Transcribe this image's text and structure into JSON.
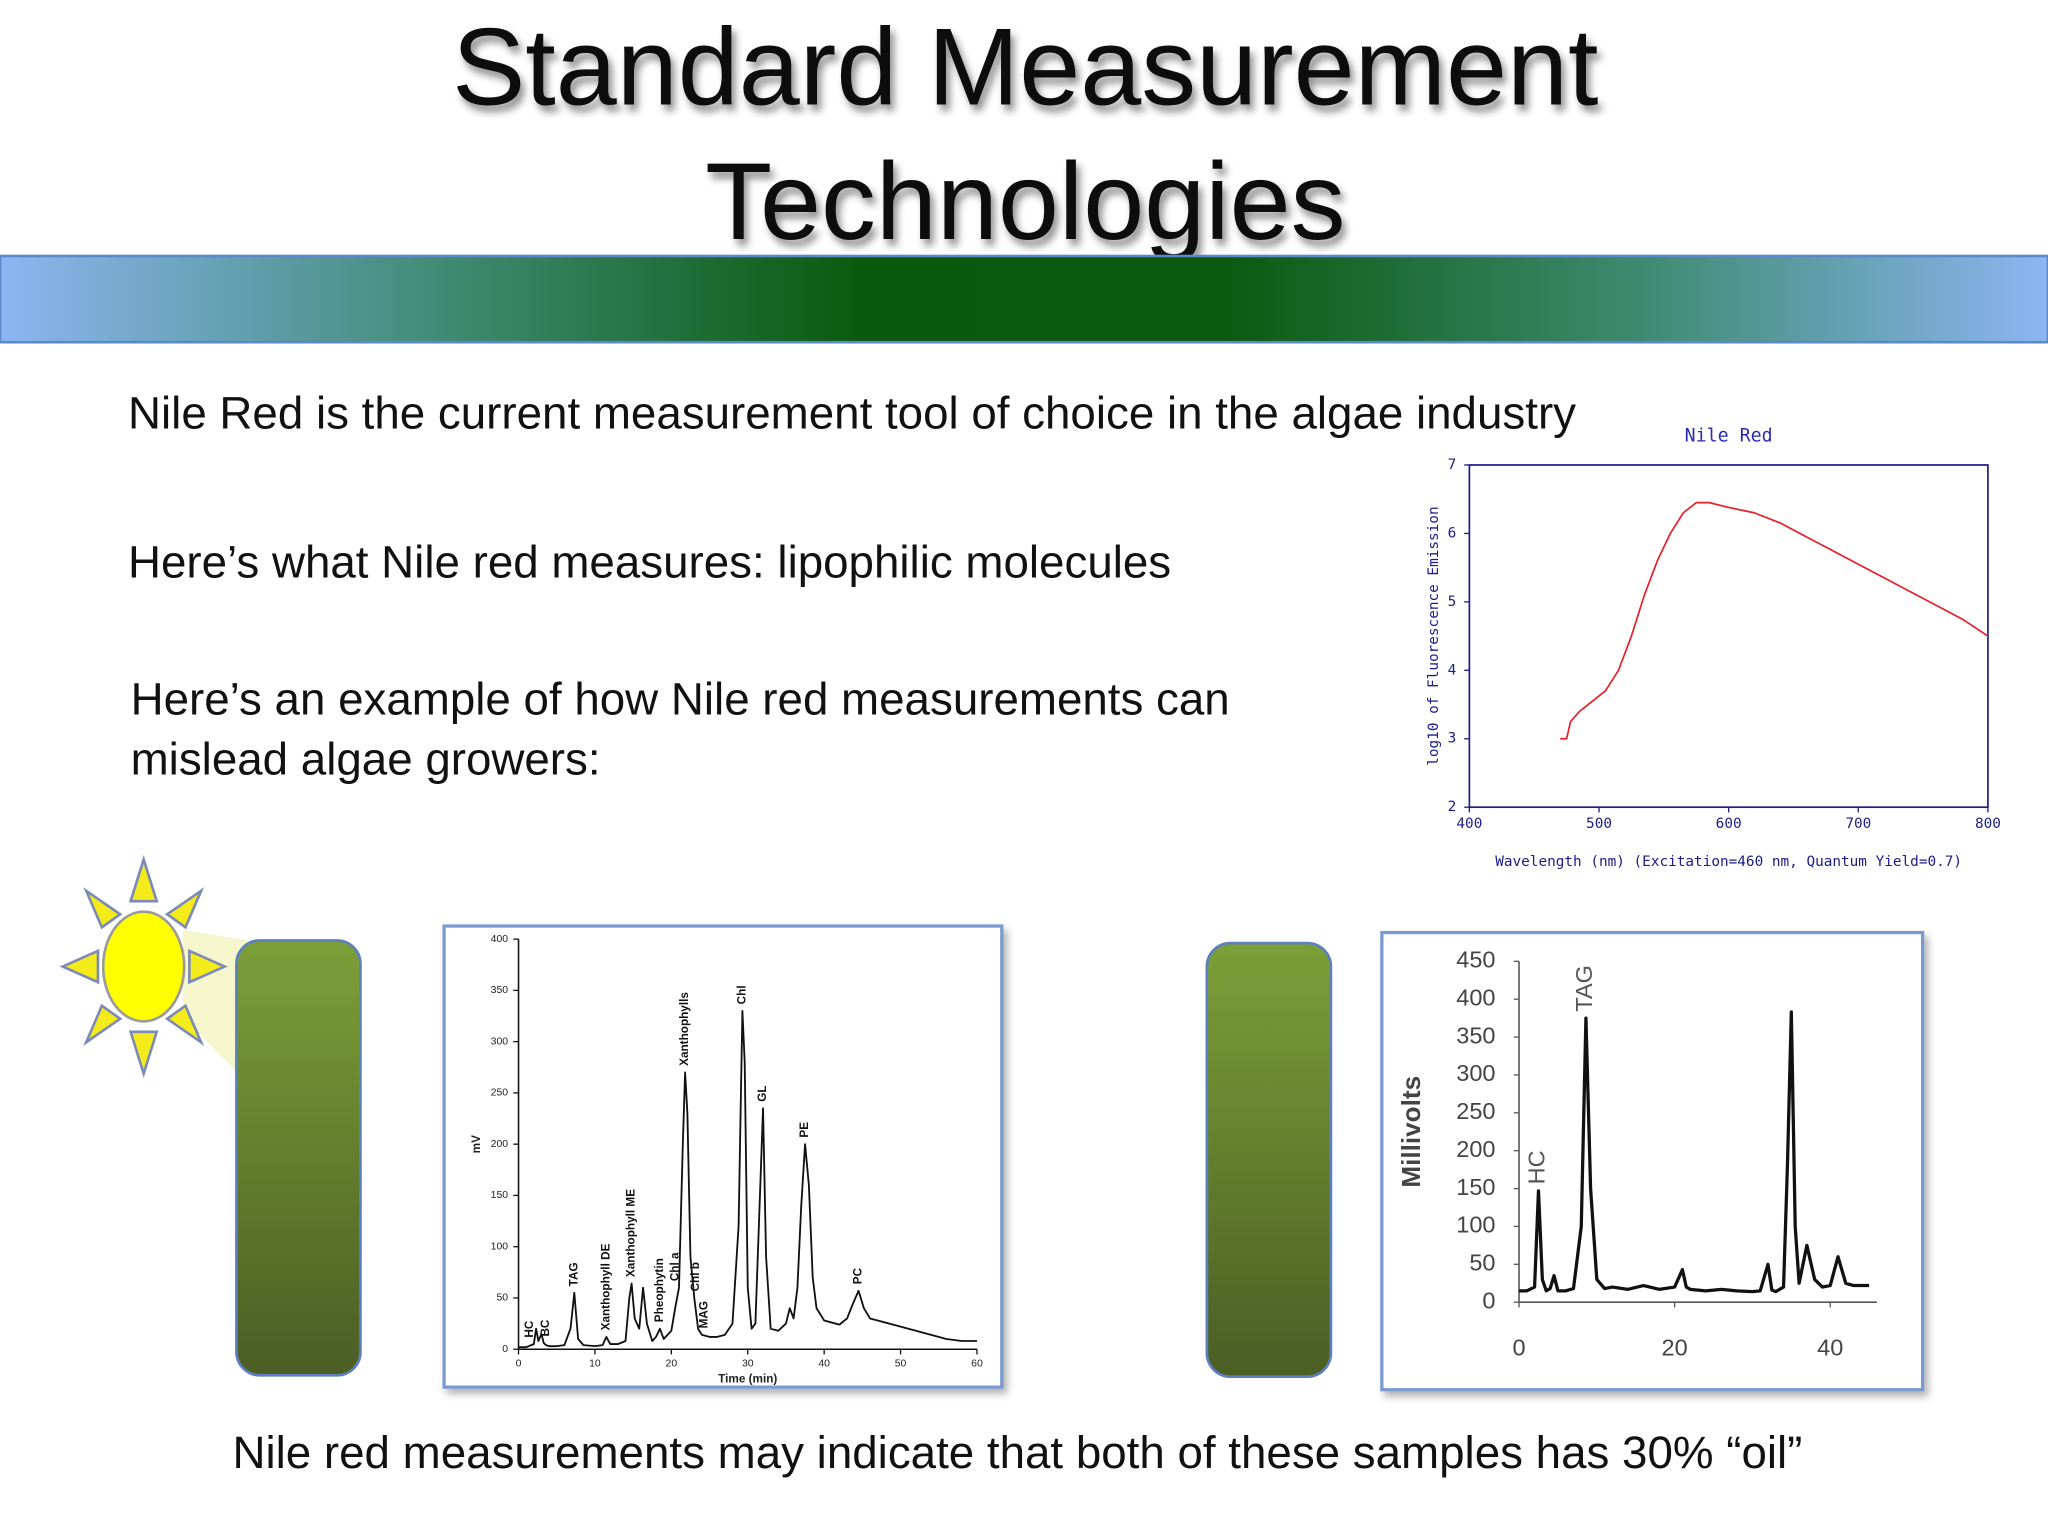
{
  "slide": {
    "title": [
      "Standard Measurement",
      "Technologies"
    ],
    "bullets": [
      [
        "Nile Red is the current measurement tool of choice in the algae industry"
      ],
      [
        "Here’s what Nile red measures: lipophilic molecules"
      ],
      [
        "Here’s an example of how Nile red measurements can",
        "mislead algae growers:"
      ]
    ],
    "footer": "Nile red measurements may indicate that both of these samples has 30% “oil”"
  },
  "chart_data": [
    {
      "type": "line",
      "title": "Nile Red",
      "x_label": "Wavelength (nm) (Excitation=460 nm, Quantum Yield=0.7)",
      "y_label": "log10 of Fluorescence Emission",
      "color": "#e8202a",
      "x": [
        470,
        475,
        478,
        485,
        495,
        505,
        515,
        525,
        535,
        545,
        555,
        565,
        575,
        585,
        600,
        620,
        640,
        660,
        680,
        700,
        720,
        740,
        760,
        780,
        800
      ],
      "values": [
        3.0,
        3.0,
        3.25,
        3.4,
        3.55,
        3.7,
        4.0,
        4.5,
        5.1,
        5.6,
        6.0,
        6.3,
        6.45,
        6.45,
        6.38,
        6.3,
        6.15,
        5.95,
        5.75,
        5.55,
        5.35,
        5.15,
        4.95,
        4.75,
        4.5
      ],
      "xlim": [
        400,
        800
      ],
      "xticks": [
        400,
        500,
        600,
        700,
        800
      ],
      "ylim": [
        2,
        7
      ],
      "yticks": [
        2,
        3,
        4,
        5,
        6,
        7
      ]
    },
    {
      "type": "line",
      "x_label": "Time (min)",
      "y_label": "mV",
      "color": "#111111",
      "x": [
        0,
        1,
        2,
        2.3,
        2.6,
        3,
        3.3,
        3.6,
        4,
        5,
        6,
        6.8,
        7.3,
        7.8,
        8.5,
        10,
        11,
        11.5,
        12,
        13,
        14,
        14.5,
        14.8,
        15.2,
        15.8,
        16.3,
        16.8,
        17.5,
        18,
        18.5,
        19,
        20,
        20.5,
        21,
        21.5,
        21.8,
        22.1,
        22.5,
        23,
        23.5,
        24,
        25,
        26,
        27,
        28,
        28.8,
        29.3,
        29.6,
        30,
        30.5,
        31,
        31.5,
        32,
        32.4,
        33,
        34,
        35,
        35.5,
        36,
        36.5,
        37,
        37.5,
        38,
        38.5,
        39,
        40,
        41,
        42,
        43,
        43.8,
        44.5,
        45.2,
        46,
        47,
        48,
        50,
        52,
        54,
        56,
        58,
        60
      ],
      "values": [
        2,
        2,
        5,
        20,
        8,
        15,
        6,
        4,
        3,
        3,
        4,
        20,
        55,
        10,
        4,
        3,
        4,
        12,
        5,
        5,
        8,
        50,
        64,
        30,
        20,
        60,
        25,
        8,
        12,
        20,
        10,
        18,
        40,
        60,
        200,
        270,
        230,
        90,
        50,
        20,
        14,
        12,
        12,
        14,
        25,
        120,
        330,
        280,
        60,
        20,
        25,
        130,
        235,
        90,
        20,
        18,
        25,
        40,
        30,
        60,
        140,
        200,
        160,
        70,
        40,
        28,
        26,
        24,
        30,
        45,
        57,
        40,
        30,
        28,
        26,
        22,
        18,
        14,
        10,
        8,
        8
      ],
      "xlim": [
        0,
        60
      ],
      "xticks": [
        0,
        10,
        20,
        30,
        40,
        50,
        60
      ],
      "ylim": [
        0,
        400
      ],
      "yticks": [
        0,
        50,
        100,
        150,
        200,
        250,
        300,
        350,
        400
      ],
      "annotations": [
        {
          "text": "HC",
          "x": 1.5
        },
        {
          "text": "BC",
          "x": 3.6
        },
        {
          "text": "TAG",
          "x": 7.3
        },
        {
          "text": "Xanthophyll DE",
          "x": 11.5
        },
        {
          "text": "Xanthophyll ME",
          "x": 14.8
        },
        {
          "text": "Pheophytin",
          "x": 18.5
        },
        {
          "text": "Chl a",
          "x": 20.5
        },
        {
          "text": "Xanthophylls",
          "x": 21.8
        },
        {
          "text": "Chl b",
          "x": 23.2
        },
        {
          "text": "MAG",
          "x": 24.3
        },
        {
          "text": "Chl",
          "x": 29.3
        },
        {
          "text": "GL",
          "x": 32
        },
        {
          "text": "PE",
          "x": 37.5
        },
        {
          "text": "PC",
          "x": 44.5
        }
      ]
    },
    {
      "type": "line",
      "y_label": "Millivolts",
      "color": "#111111",
      "x": [
        0,
        1,
        2,
        2.5,
        3,
        3.5,
        4,
        4.5,
        5,
        6,
        7,
        8,
        8.6,
        9.2,
        10,
        11,
        12,
        14,
        16,
        18,
        20,
        21,
        21.5,
        22,
        24,
        26,
        28,
        30,
        31,
        32,
        32.5,
        33,
        34,
        34.5,
        35,
        35.5,
        36,
        37,
        38,
        39,
        40,
        41,
        42,
        43,
        44,
        45
      ],
      "values": [
        15,
        15,
        20,
        147,
        30,
        15,
        18,
        35,
        15,
        15,
        18,
        100,
        375,
        150,
        30,
        18,
        20,
        17,
        22,
        17,
        20,
        43,
        20,
        17,
        15,
        17,
        15,
        14,
        15,
        50,
        16,
        14,
        20,
        180,
        383,
        100,
        25,
        75,
        30,
        20,
        22,
        60,
        25,
        22,
        22,
        22
      ],
      "xlim": [
        0,
        46
      ],
      "xticks": [
        0,
        20,
        40
      ],
      "ylim": [
        0,
        450
      ],
      "yticks": [
        0,
        50,
        100,
        150,
        200,
        250,
        300,
        350,
        400,
        450
      ],
      "annotations": [
        {
          "text": "HC",
          "x": 2.5
        },
        {
          "text": "TAG",
          "x": 8.6
        }
      ]
    }
  ]
}
